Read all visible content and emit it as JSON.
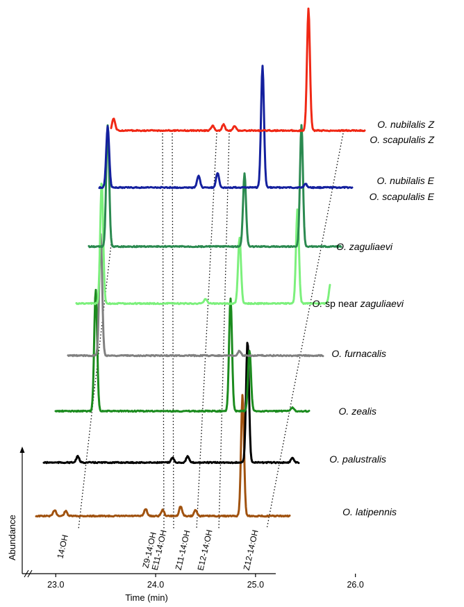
{
  "chart_data": {
    "type": "line",
    "title": "",
    "xlabel": "Time (min)",
    "ylabel": "Abundance",
    "xlim": [
      22.6,
      26.7
    ],
    "x_ticks": [
      "23.0",
      "24.0",
      "25.0",
      "26.0"
    ],
    "axis_break": true,
    "layout": "stacked chromatograms, offset diagonally",
    "compound_labels": [
      {
        "text": "14:OH",
        "time": 23.4
      },
      {
        "text": "Z9-14:OH",
        "time": 24.83
      },
      {
        "text": "E11-14:OH",
        "time": 24.98
      },
      {
        "text": "Z11-14:OH",
        "time": 25.35
      },
      {
        "text": "E12-14:OH",
        "time": 25.72
      },
      {
        "text": "Z12-14:OH",
        "time": 26.45
      }
    ],
    "series": [
      {
        "label_parts": [
          {
            "text": "O. latipennis",
            "italic": true
          }
        ],
        "color": "#A0520F",
        "time_shift": -0.05,
        "baseline_start": 22.63,
        "baseline_end": 26.82,
        "peaks": [
          {
            "t": 23.04,
            "h": 0.05
          },
          {
            "t": 23.15,
            "h": 0.04
          },
          {
            "t": 23.95,
            "h": 0.06
          },
          {
            "t": 24.12,
            "h": 0.05
          },
          {
            "t": 24.3,
            "h": 0.08
          },
          {
            "t": 24.45,
            "h": 0.05
          },
          {
            "t": 24.92,
            "h": 1.0
          },
          {
            "t": 26.3,
            "h": 0.06
          },
          {
            "t": 26.6,
            "h": 0.03
          }
        ]
      },
      {
        "label_parts": [
          {
            "text": "O. palustralis",
            "italic": true
          }
        ],
        "color": "#000000",
        "time_shift": -0.18,
        "baseline_start": 22.63,
        "baseline_end": 26.82,
        "peaks": [
          {
            "t": 23.4,
            "h": 0.05
          },
          {
            "t": 24.35,
            "h": 0.04
          },
          {
            "t": 24.5,
            "h": 0.05
          },
          {
            "t": 25.1,
            "h": 1.0
          },
          {
            "t": 25.55,
            "h": 0.04
          },
          {
            "t": 26.5,
            "h": 0.03
          }
        ]
      },
      {
        "label_parts": [
          {
            "text": "O. zealis",
            "italic": true
          }
        ],
        "color": "#1B8B1E",
        "time_shift": -0.33,
        "baseline_start": 22.63,
        "baseline_end": 26.82,
        "peaks": [
          {
            "t": 23.73,
            "h": 1.0
          },
          {
            "t": 25.08,
            "h": 0.93
          },
          {
            "t": 25.27,
            "h": 0.5
          },
          {
            "t": 25.7,
            "h": 0.03
          }
        ]
      },
      {
        "label_parts": [
          {
            "text": "O. furnacalis",
            "italic": true
          }
        ],
        "color": "#808080",
        "time_shift": -0.48,
        "baseline_start": 22.63,
        "baseline_end": 26.82,
        "peaks": [
          {
            "t": 23.93,
            "h": 1.0
          },
          {
            "t": 25.32,
            "h": 0.04
          },
          {
            "t": 26.28,
            "h": 0.29
          },
          {
            "t": 26.82,
            "h": 0.29
          }
        ]
      },
      {
        "label_parts": [
          {
            "text": "O.",
            "italic": true
          },
          {
            "text": " sp near ",
            "italic": false
          },
          {
            "text": "zaguliaevi",
            "italic": true
          }
        ],
        "color": "#7CF07C",
        "time_shift": -0.62,
        "baseline_start": 22.63,
        "baseline_end": 26.82,
        "peaks": [
          {
            "t": 24.08,
            "h": 1.0
          },
          {
            "t": 25.12,
            "h": 0.04
          },
          {
            "t": 25.46,
            "h": 0.54
          },
          {
            "t": 26.04,
            "h": 0.78
          },
          {
            "t": 26.37,
            "h": 0.16
          }
        ]
      },
      {
        "label_parts": [
          {
            "text": "O. zaguliaevi",
            "italic": true
          }
        ],
        "color": "#2B8A50",
        "time_shift": -0.76,
        "baseline_start": 22.63,
        "baseline_end": 26.82,
        "peaks": [
          {
            "t": 24.28,
            "h": 1.0
          },
          {
            "t": 25.65,
            "h": 0.6
          },
          {
            "t": 26.22,
            "h": 1.0
          },
          {
            "t": 26.9,
            "h": 0.03
          }
        ]
      },
      {
        "label_parts": [
          {
            "text": "O. nubilalis E",
            "italic": true
          },
          {
            "text": "O. scapulalis E",
            "italic": true
          }
        ],
        "color": "#14209E",
        "time_shift": -0.9,
        "baseline_start": 22.63,
        "baseline_end": 26.82,
        "peaks": [
          {
            "t": 24.42,
            "h": 0.5
          },
          {
            "t": 25.33,
            "h": 0.1
          },
          {
            "t": 25.52,
            "h": 0.12
          },
          {
            "t": 25.97,
            "h": 1.0
          },
          {
            "t": 26.4,
            "h": 0.03
          }
        ]
      },
      {
        "label_parts": [
          {
            "text": "O. nubilalis Z",
            "italic": true
          },
          {
            "text": "O. scapulalis Z",
            "italic": true
          }
        ],
        "color": "#F02815",
        "time_shift": -1.05,
        "baseline_start": 22.63,
        "baseline_end": 26.82,
        "peaks": [
          {
            "t": 24.63,
            "h": 0.1
          },
          {
            "t": 25.62,
            "h": 0.04
          },
          {
            "t": 25.73,
            "h": 0.05
          },
          {
            "t": 25.84,
            "h": 0.04
          },
          {
            "t": 26.58,
            "h": 1.0
          }
        ]
      }
    ]
  }
}
